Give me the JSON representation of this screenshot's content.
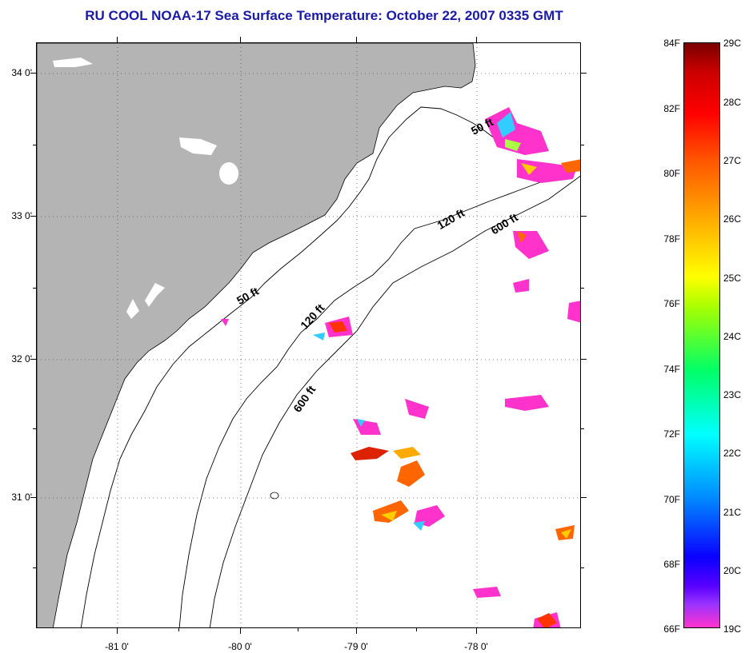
{
  "title": "RU COOL  NOAA-17  Sea Surface Temperature:  October 22, 2007 0335 GMT",
  "lat_labels": [
    "34 0'",
    "33 0'",
    "32 0'",
    "31 0'"
  ],
  "lon_labels": [
    "-81 0'",
    "-80 0'",
    "-79 0'",
    "-78 0'"
  ],
  "isobath_labels": [
    "50 ft",
    "50 ft",
    "120 ft",
    "120 ft",
    "600 ft",
    "600 ft"
  ],
  "colorbar": {
    "fahrenheit": [
      "84F",
      "82F",
      "80F",
      "78F",
      "76F",
      "74F",
      "72F",
      "70F",
      "68F",
      "66F"
    ],
    "celsius": [
      "29C",
      "28C",
      "27C",
      "26C",
      "25C",
      "24C",
      "23C",
      "22C",
      "21C",
      "20C",
      "19C"
    ]
  },
  "colors": {
    "land": "#b4b4b4",
    "title": "#1a1aa8"
  }
}
